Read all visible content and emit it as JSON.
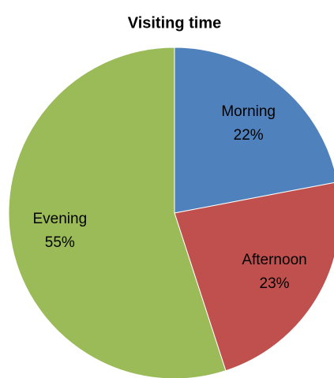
{
  "chart_data": {
    "type": "pie",
    "title": "Visiting time",
    "categories": [
      "Morning",
      "Afternoon",
      "Evening"
    ],
    "values": [
      22,
      23,
      55
    ],
    "value_labels": [
      "22%",
      "23%",
      "55%"
    ],
    "colors": [
      "#4f81bd",
      "#c0504d",
      "#9bbb59"
    ]
  }
}
